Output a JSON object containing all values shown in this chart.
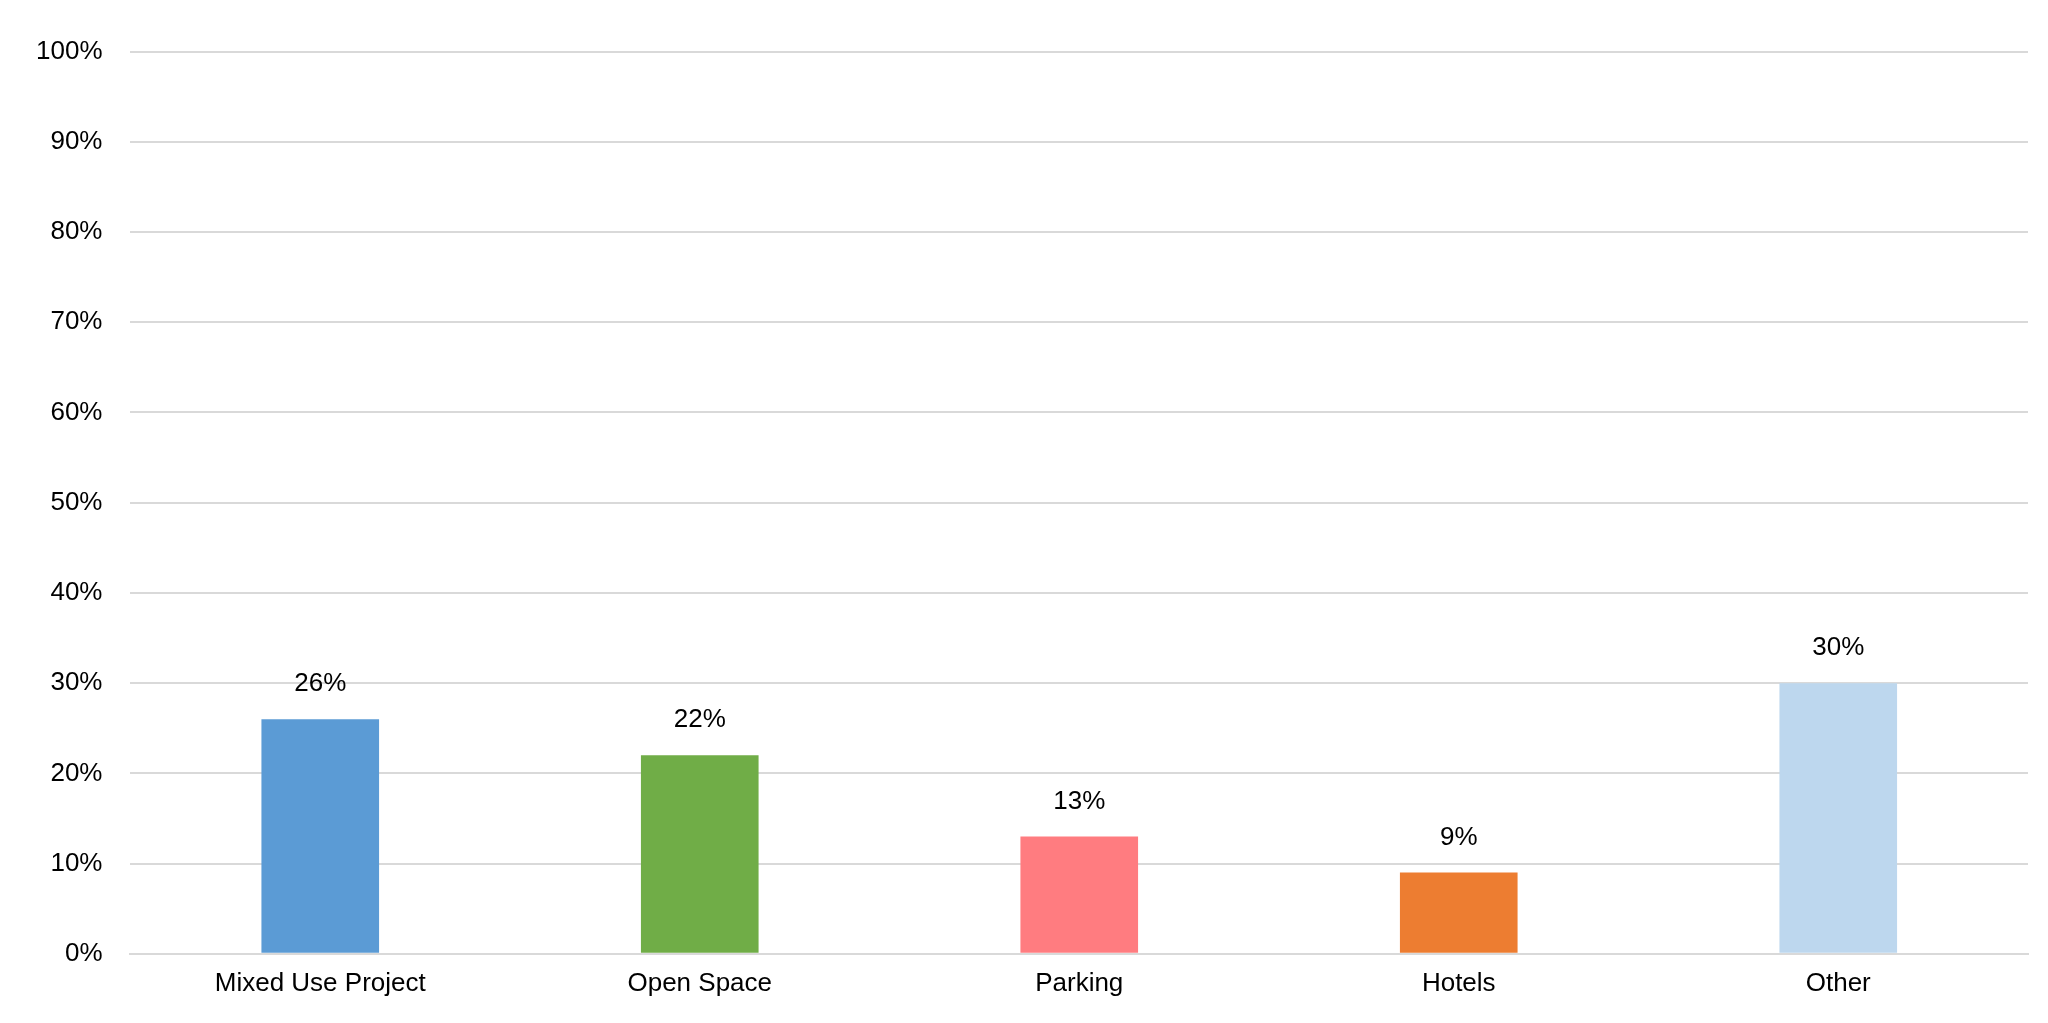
{
  "chart_data": {
    "type": "bar",
    "categories": [
      "Mixed Use Project",
      "Open Space",
      "Parking",
      "Hotels",
      "Other"
    ],
    "values": [
      26,
      22,
      13,
      9,
      30
    ],
    "colors": [
      "#5b9bd5",
      "#70ad47",
      "#ff7c80",
      "#ed7d31",
      "#bdd7ee"
    ],
    "value_labels": [
      "26%",
      "22%",
      "13%",
      "9%",
      "30%"
    ],
    "ylim": [
      0,
      100
    ],
    "yticks": [
      {
        "value": 0,
        "label": "0%"
      },
      {
        "value": 10,
        "label": "10%"
      },
      {
        "value": 20,
        "label": "20%"
      },
      {
        "value": 30,
        "label": "30%"
      },
      {
        "value": 40,
        "label": "40%"
      },
      {
        "value": 50,
        "label": "50%"
      },
      {
        "value": 60,
        "label": "60%"
      },
      {
        "value": 70,
        "label": "70%"
      },
      {
        "value": 80,
        "label": "80%"
      },
      {
        "value": 90,
        "label": "90%"
      },
      {
        "value": 100,
        "label": "100%"
      }
    ],
    "grid": "y",
    "legend": false
  }
}
